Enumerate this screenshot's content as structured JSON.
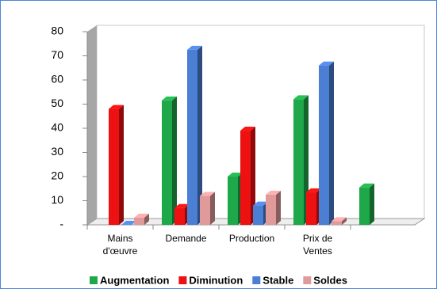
{
  "chart_data": {
    "type": "bar3d",
    "categories": [
      "Mains d'œuvre",
      "Demande",
      "Production",
      "Prix de Ventes",
      null
    ],
    "series": [
      {
        "name": "Augmentation",
        "color": "#1fa84a",
        "values": [
          null,
          51.5,
          20,
          52,
          15.5
        ]
      },
      {
        "name": "Diminution",
        "color": "#ee1111",
        "values": [
          48,
          7,
          39,
          13.5,
          null
        ]
      },
      {
        "name": "Stable",
        "color": "#4a7fd4",
        "values": [
          0,
          72.5,
          8,
          66,
          null
        ]
      },
      {
        "name": "Soldes",
        "color": "#e09a9a",
        "values": [
          3,
          12,
          12.5,
          1.5,
          null
        ]
      }
    ],
    "ylim": [
      0,
      80
    ],
    "yticks": [
      {
        "value": 0,
        "label": "-"
      },
      10,
      20,
      30,
      40,
      50,
      60,
      70,
      80
    ],
    "legend": "bottom"
  }
}
